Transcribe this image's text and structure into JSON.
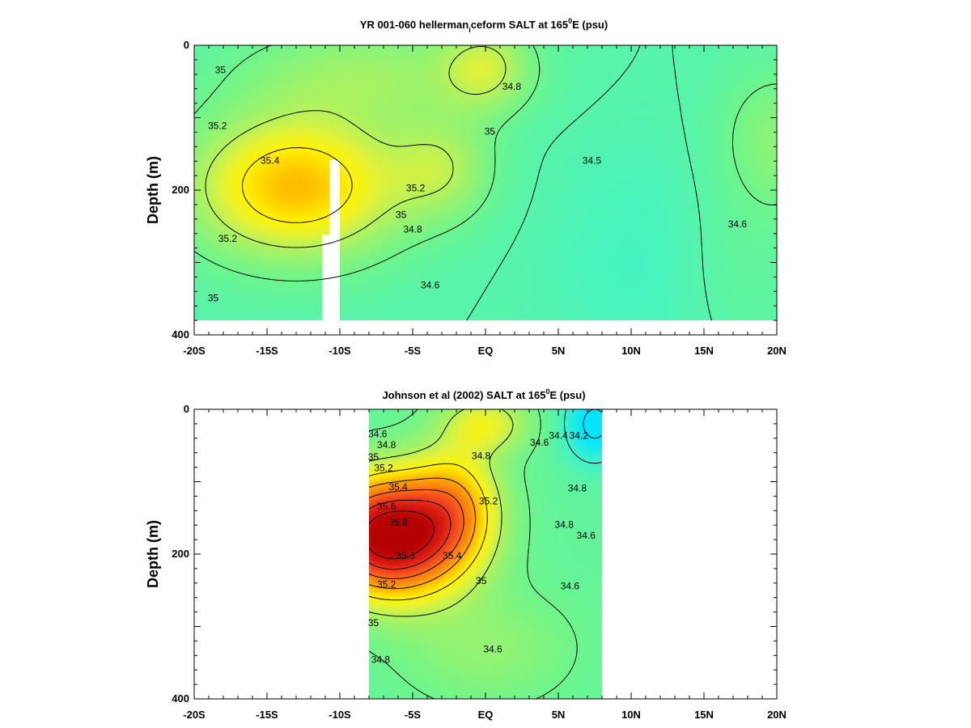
{
  "colors": {
    "salinity_scale": [
      "#00e5ff",
      "#3ff2c9",
      "#6ef58c",
      "#b6f25a",
      "#e6f235",
      "#fff400",
      "#ffd400",
      "#ffab00",
      "#ff7d0f",
      "#f5501d",
      "#d81b12",
      "#b40000"
    ],
    "contour": "#000000",
    "background": "#ffffff"
  },
  "chart_data": [
    {
      "type": "heatmap",
      "title_parts": [
        "YR 001-060 hellerman",
        "i",
        "ceform SALT at 165",
        "0",
        "E (psu)"
      ],
      "ylabel": "Depth (m)",
      "xticks": [
        -20,
        -15,
        -10,
        -5,
        0,
        5,
        10,
        15,
        20
      ],
      "xtick_labels": [
        "-20S",
        "-15S",
        "-10S",
        "-5S",
        "EQ",
        "5N",
        "10N",
        "15N",
        "20N"
      ],
      "yticks": [
        0,
        200,
        400
      ],
      "ytick_labels": [
        "0",
        "200",
        "400"
      ],
      "xlim": [
        -20,
        20
      ],
      "ylim": [
        0,
        400
      ],
      "data_extent": {
        "x": [
          -20,
          20
        ],
        "depth": [
          0,
          380
        ]
      },
      "masked_regions": [
        {
          "x": [
            -10.7,
            -10
          ],
          "depth": [
            158,
            380
          ]
        },
        {
          "x": [
            -11.2,
            -10.7
          ],
          "depth": [
            262,
            380
          ]
        }
      ],
      "grid": "off",
      "field": {
        "base": 34.5,
        "features": [
          {
            "amp": 0.66,
            "x": -13,
            "depth": 195,
            "sx": 7,
            "sz": 95
          },
          {
            "amp": 0.25,
            "x": -3,
            "depth": 170,
            "sx": 3.5,
            "sz": 70
          },
          {
            "amp": 0.22,
            "x": -8,
            "depth": 40,
            "sx": 9,
            "sz": 70
          },
          {
            "amp": -0.08,
            "x": 11,
            "depth": 300,
            "sx": 6,
            "sz": 160
          },
          {
            "amp": 0.18,
            "x": 20,
            "depth": 130,
            "sx": 4,
            "sz": 100
          },
          {
            "amp": 0.28,
            "x": 0,
            "depth": 30,
            "sx": 3,
            "sz": 60
          },
          {
            "amp": 0.06,
            "x": 17,
            "depth": 300,
            "sx": 5,
            "sz": 120
          }
        ]
      },
      "contour_levels": [
        34.5,
        34.6,
        34.8,
        35.0,
        35.2,
        35.4
      ],
      "contour_labels": [
        {
          "text": "35",
          "x": -18.2,
          "depth": 35
        },
        {
          "text": "35.2",
          "x": -18.4,
          "depth": 112
        },
        {
          "text": "35.4",
          "x": -14.8,
          "depth": 160
        },
        {
          "text": "35",
          "x": 0.3,
          "depth": 120
        },
        {
          "text": "34.8",
          "x": 1.8,
          "depth": 58
        },
        {
          "text": "35.2",
          "x": -4.8,
          "depth": 198
        },
        {
          "text": "35",
          "x": -5.8,
          "depth": 235
        },
        {
          "text": "34.8",
          "x": -5.0,
          "depth": 255
        },
        {
          "text": "34.5",
          "x": 7.3,
          "depth": 160
        },
        {
          "text": "34.6",
          "x": 17.3,
          "depth": 248
        },
        {
          "text": "35.2",
          "x": -17.7,
          "depth": 268
        },
        {
          "text": "35",
          "x": -18.7,
          "depth": 350
        },
        {
          "text": "34.6",
          "x": -3.8,
          "depth": 332
        }
      ]
    },
    {
      "type": "heatmap",
      "title_parts": [
        "Johnson et al (2002) SALT at 165",
        "0",
        "E (psu)"
      ],
      "ylabel": "Depth (m)",
      "xticks": [
        -20,
        -15,
        -10,
        -5,
        0,
        5,
        10,
        15,
        20
      ],
      "xtick_labels": [
        "-20S",
        "-15S",
        "-10S",
        "-5S",
        "EQ",
        "5N",
        "10N",
        "15N",
        "20N"
      ],
      "yticks": [
        0,
        200,
        400
      ],
      "ytick_labels": [
        "0",
        "200",
        "400"
      ],
      "xlim": [
        -20,
        20
      ],
      "ylim": [
        0,
        400
      ],
      "data_extent": {
        "x": [
          -8,
          8
        ],
        "depth": [
          0,
          400
        ]
      },
      "masked_regions": [],
      "grid": "off",
      "field": {
        "base": 34.55,
        "features": [
          {
            "amp": 1.43,
            "x": -6.5,
            "depth": 175,
            "sx": 4.8,
            "sz": 80
          },
          {
            "amp": 0.45,
            "x": -2,
            "depth": 130,
            "sx": 3,
            "sz": 80
          },
          {
            "amp": -0.4,
            "x": 7.5,
            "depth": 20,
            "sx": 2.2,
            "sz": 55
          },
          {
            "amp": 0.35,
            "x": 0,
            "depth": 20,
            "sx": 3,
            "sz": 40
          },
          {
            "amp": 0.15,
            "x": 0,
            "depth": 330,
            "sx": 6,
            "sz": 80
          }
        ]
      },
      "contour_levels": [
        34.2,
        34.4,
        34.6,
        34.8,
        35.0,
        35.2,
        35.4,
        35.6,
        35.8
      ],
      "contour_labels": [
        {
          "text": "34.6",
          "x": -7.4,
          "depth": 35
        },
        {
          "text": "34.8",
          "x": -6.8,
          "depth": 50
        },
        {
          "text": "35",
          "x": -7.7,
          "depth": 67
        },
        {
          "text": "35.2",
          "x": -7.0,
          "depth": 82
        },
        {
          "text": "35.4",
          "x": -6.0,
          "depth": 108
        },
        {
          "text": "35.6",
          "x": -6.8,
          "depth": 135
        },
        {
          "text": "35.8",
          "x": -6.0,
          "depth": 157
        },
        {
          "text": "35.6",
          "x": -5.5,
          "depth": 203
        },
        {
          "text": "35.4",
          "x": -2.3,
          "depth": 203
        },
        {
          "text": "35.2",
          "x": -6.8,
          "depth": 243
        },
        {
          "text": "35",
          "x": -7.7,
          "depth": 296
        },
        {
          "text": "34.8",
          "x": -7.2,
          "depth": 347
        },
        {
          "text": "35.2",
          "x": 0.2,
          "depth": 128
        },
        {
          "text": "35",
          "x": -0.3,
          "depth": 238
        },
        {
          "text": "34.6",
          "x": 0.5,
          "depth": 332
        },
        {
          "text": "34.8",
          "x": -0.3,
          "depth": 65
        },
        {
          "text": "34.6",
          "x": 3.7,
          "depth": 47
        },
        {
          "text": "34.4",
          "x": 5.0,
          "depth": 37
        },
        {
          "text": "34.2",
          "x": 6.4,
          "depth": 37
        },
        {
          "text": "34.8",
          "x": 6.3,
          "depth": 110
        },
        {
          "text": "34.8",
          "x": 5.4,
          "depth": 160
        },
        {
          "text": "34.6",
          "x": 6.9,
          "depth": 175
        },
        {
          "text": "34.6",
          "x": 5.8,
          "depth": 245
        }
      ]
    }
  ]
}
